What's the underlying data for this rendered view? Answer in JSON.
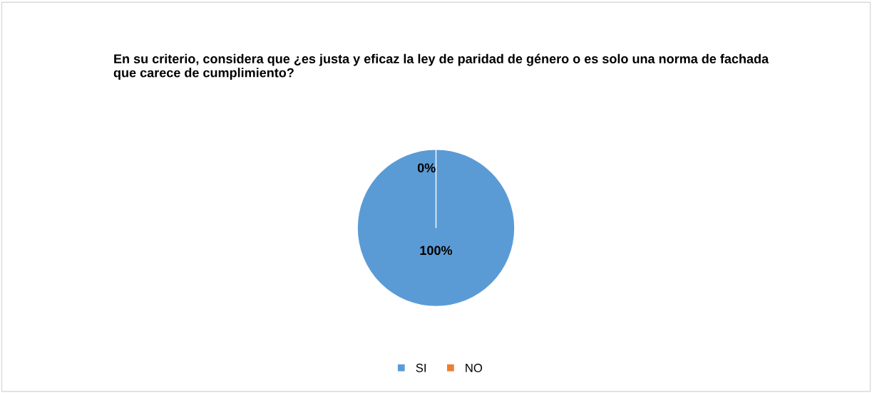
{
  "chart_data": {
    "type": "pie",
    "title": "En su criterio, considera que ¿es justa y eficaz la ley de paridad de género o es solo una norma de fachada  que carece de cumplimiento?",
    "categories": [
      "SI",
      "NO"
    ],
    "values": [
      100,
      0
    ],
    "colors": [
      "#5b9bd5",
      "#ed7d31"
    ],
    "value_labels": [
      "100%",
      "0%"
    ],
    "legend": "bottom"
  }
}
